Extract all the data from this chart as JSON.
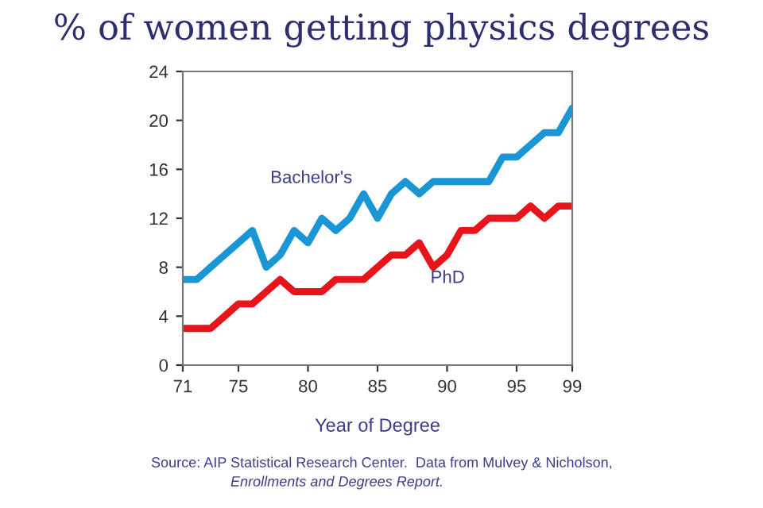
{
  "chart_data": {
    "type": "line",
    "title": "% of women getting physics degrees",
    "xlabel": "Year of Degree",
    "x": [
      71,
      72,
      73,
      74,
      75,
      76,
      77,
      78,
      79,
      80,
      81,
      82,
      83,
      84,
      85,
      86,
      87,
      88,
      89,
      90,
      91,
      92,
      93,
      94,
      95,
      96,
      97,
      98,
      99
    ],
    "series": [
      {
        "name": "Bachelor's",
        "color": "#1a96d4",
        "values": [
          7,
          7,
          8,
          9,
          10,
          11,
          8,
          9,
          11,
          10,
          12,
          11,
          12,
          14,
          12,
          14,
          15,
          14,
          15,
          15,
          15,
          15,
          15,
          17,
          17,
          18,
          19,
          19,
          21
        ]
      },
      {
        "name": "PhD",
        "color": "#e8141c",
        "values": [
          3,
          3,
          3,
          4,
          5,
          5,
          6,
          7,
          6,
          6,
          6,
          7,
          7,
          7,
          8,
          9,
          9,
          10,
          8,
          9,
          11,
          11,
          12,
          12,
          12,
          13,
          12,
          13,
          13
        ]
      }
    ],
    "xlim": [
      71,
      99
    ],
    "xticks": [
      71,
      75,
      80,
      85,
      90,
      95,
      99
    ],
    "ylim": [
      0,
      24
    ],
    "yticks": [
      0,
      4,
      8,
      12,
      16,
      20,
      24
    ],
    "annotations": [
      "Source: AIP Statistical Research Center.  Data from Mulvey & Nicholson,",
      "Enrollments and Degrees Report."
    ],
    "grid": false,
    "legend": false,
    "marker": "none",
    "line_style": "solid"
  }
}
